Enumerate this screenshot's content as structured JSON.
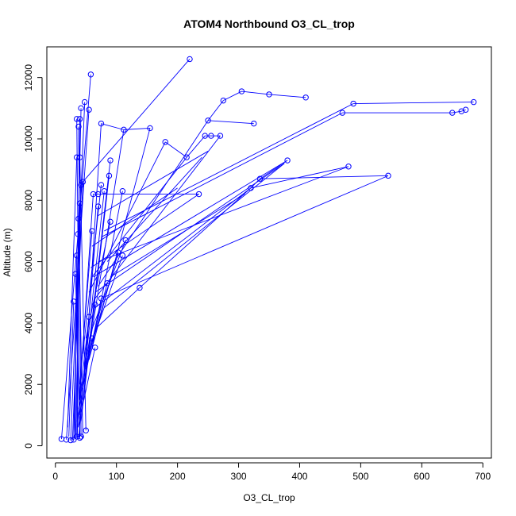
{
  "chart_data": {
    "type": "line",
    "title": "ATOM4 Northbound O3_CL_trop",
    "xlabel": "O3_CL_trop",
    "ylabel": "Altitude (m)",
    "xlim": [
      -14,
      714
    ],
    "ylim": [
      -400,
      13000
    ],
    "x_ticks": [
      0,
      100,
      200,
      300,
      400,
      500,
      600,
      700
    ],
    "y_ticks": [
      0,
      2000,
      4000,
      6000,
      8000,
      10000,
      12000
    ],
    "y_tick_labels": [
      "0",
      "2000",
      "4000",
      "6000",
      "8000",
      "10000",
      "12000"
    ],
    "grid": false,
    "legend": "none",
    "color": "#0000ff",
    "points": [
      [
        10,
        220
      ],
      [
        18,
        200
      ],
      [
        25,
        180
      ],
      [
        30,
        200
      ],
      [
        35,
        300
      ],
      [
        40,
        260
      ],
      [
        42,
        300
      ],
      [
        50,
        500
      ],
      [
        30,
        4700
      ],
      [
        33,
        5600
      ],
      [
        35,
        6200
      ],
      [
        37,
        6900
      ],
      [
        38,
        7400
      ],
      [
        40,
        7900
      ],
      [
        42,
        8500
      ],
      [
        35,
        9400
      ],
      [
        38,
        10400
      ],
      [
        35,
        10650
      ],
      [
        40,
        10650
      ],
      [
        42,
        11000
      ],
      [
        48,
        11200
      ],
      [
        58,
        12100
      ],
      [
        55,
        10950
      ],
      [
        40,
        9400
      ],
      [
        45,
        8600
      ],
      [
        62,
        8200
      ],
      [
        70,
        7800
      ],
      [
        80,
        8300
      ],
      [
        88,
        8800
      ],
      [
        90,
        9300
      ],
      [
        75,
        10500
      ],
      [
        112,
        10300
      ],
      [
        155,
        10350
      ],
      [
        110,
        8300
      ],
      [
        75,
        8500
      ],
      [
        70,
        8200
      ],
      [
        60,
        7000
      ],
      [
        90,
        7300
      ],
      [
        115,
        6700
      ],
      [
        103,
        6300
      ],
      [
        110,
        6200
      ],
      [
        85,
        5300
      ],
      [
        75,
        4800
      ],
      [
        65,
        4600
      ],
      [
        55,
        4200
      ],
      [
        60,
        3500
      ],
      [
        65,
        3200
      ],
      [
        220,
        12600
      ],
      [
        180,
        9900
      ],
      [
        215,
        9400
      ],
      [
        245,
        10100
      ],
      [
        255,
        10100
      ],
      [
        270,
        10100
      ],
      [
        250,
        10600
      ],
      [
        275,
        11250
      ],
      [
        305,
        11550
      ],
      [
        350,
        11450
      ],
      [
        410,
        11350
      ],
      [
        325,
        10500
      ],
      [
        235,
        8200
      ],
      [
        138,
        5150
      ],
      [
        320,
        8400
      ],
      [
        335,
        8700
      ],
      [
        380,
        9300
      ],
      [
        480,
        9100
      ],
      [
        545,
        8800
      ],
      [
        470,
        10850
      ],
      [
        488,
        11150
      ],
      [
        650,
        10850
      ],
      [
        665,
        10900
      ],
      [
        672,
        10950
      ],
      [
        685,
        11200
      ]
    ],
    "segments": [
      [
        [
          10,
          220
        ],
        [
          58,
          12100
        ]
      ],
      [
        [
          18,
          200
        ],
        [
          55,
          10950
        ]
      ],
      [
        [
          25,
          180
        ],
        [
          48,
          11200
        ]
      ],
      [
        [
          30,
          200
        ],
        [
          42,
          11000
        ]
      ],
      [
        [
          35,
          300
        ],
        [
          40,
          10650
        ]
      ],
      [
        [
          40,
          260
        ],
        [
          35,
          10650
        ]
      ],
      [
        [
          42,
          300
        ],
        [
          38,
          10400
        ]
      ],
      [
        [
          50,
          500
        ],
        [
          40,
          9400
        ]
      ],
      [
        [
          20,
          600
        ],
        [
          35,
          9400
        ]
      ],
      [
        [
          28,
          200
        ],
        [
          45,
          8600
        ]
      ],
      [
        [
          35,
          250
        ],
        [
          62,
          8200
        ]
      ],
      [
        [
          38,
          220
        ],
        [
          70,
          7800
        ]
      ],
      [
        [
          22,
          300
        ],
        [
          30,
          4700
        ]
      ],
      [
        [
          40,
          300
        ],
        [
          33,
          5600
        ]
      ],
      [
        [
          32,
          250
        ],
        [
          35,
          6200
        ]
      ],
      [
        [
          36,
          280
        ],
        [
          37,
          6900
        ]
      ],
      [
        [
          45,
          250
        ],
        [
          38,
          7400
        ]
      ],
      [
        [
          30,
          180
        ],
        [
          40,
          7900
        ]
      ],
      [
        [
          33,
          220
        ],
        [
          42,
          8500
        ]
      ],
      [
        [
          40,
          1000
        ],
        [
          80,
          8300
        ]
      ],
      [
        [
          42,
          800
        ],
        [
          88,
          8800
        ]
      ],
      [
        [
          45,
          1500
        ],
        [
          90,
          9300
        ]
      ],
      [
        [
          48,
          2000
        ],
        [
          75,
          10500
        ]
      ],
      [
        [
          50,
          2500
        ],
        [
          112,
          10300
        ]
      ],
      [
        [
          55,
          2800
        ],
        [
          155,
          10350
        ]
      ],
      [
        [
          60,
          3200
        ],
        [
          110,
          8300
        ]
      ],
      [
        [
          45,
          3000
        ],
        [
          75,
          8500
        ]
      ],
      [
        [
          40,
          2000
        ],
        [
          60,
          7000
        ]
      ],
      [
        [
          50,
          3500
        ],
        [
          90,
          7300
        ]
      ],
      [
        [
          60,
          3800
        ],
        [
          115,
          6700
        ]
      ],
      [
        [
          55,
          3000
        ],
        [
          103,
          6300
        ]
      ],
      [
        [
          62,
          3500
        ],
        [
          110,
          6200
        ]
      ],
      [
        [
          48,
          2500
        ],
        [
          85,
          5300
        ]
      ],
      [
        [
          44,
          1800
        ],
        [
          75,
          4800
        ]
      ],
      [
        [
          40,
          1500
        ],
        [
          65,
          4600
        ]
      ],
      [
        [
          38,
          1200
        ],
        [
          55,
          4200
        ]
      ],
      [
        [
          35,
          800
        ],
        [
          60,
          3500
        ]
      ],
      [
        [
          37,
          600
        ],
        [
          65,
          3200
        ]
      ],
      [
        [
          45,
          8600
        ],
        [
          220,
          12600
        ]
      ],
      [
        [
          75,
          10500
        ],
        [
          112,
          10300
        ]
      ],
      [
        [
          112,
          10300
        ],
        [
          155,
          10350
        ]
      ],
      [
        [
          55,
          5000
        ],
        [
          180,
          9900
        ]
      ],
      [
        [
          180,
          9900
        ],
        [
          215,
          9400
        ]
      ],
      [
        [
          215,
          9400
        ],
        [
          245,
          10100
        ]
      ],
      [
        [
          245,
          10100
        ],
        [
          255,
          10100
        ]
      ],
      [
        [
          255,
          10100
        ],
        [
          270,
          10100
        ]
      ],
      [
        [
          60,
          5500
        ],
        [
          215,
          9400
        ]
      ],
      [
        [
          70,
          5200
        ],
        [
          250,
          10600
        ]
      ],
      [
        [
          250,
          10600
        ],
        [
          275,
          11250
        ]
      ],
      [
        [
          275,
          11250
        ],
        [
          305,
          11550
        ]
      ],
      [
        [
          305,
          11550
        ],
        [
          350,
          11450
        ]
      ],
      [
        [
          350,
          11450
        ],
        [
          410,
          11350
        ]
      ],
      [
        [
          250,
          10600
        ],
        [
          325,
          10500
        ]
      ],
      [
        [
          65,
          4800
        ],
        [
          270,
          10100
        ]
      ],
      [
        [
          62,
          8200
        ],
        [
          235,
          8200
        ]
      ],
      [
        [
          58,
          5800
        ],
        [
          235,
          8200
        ]
      ],
      [
        [
          65,
          3800
        ],
        [
          138,
          5150
        ]
      ],
      [
        [
          138,
          5150
        ],
        [
          320,
          8400
        ]
      ],
      [
        [
          320,
          8400
        ],
        [
          335,
          8700
        ]
      ],
      [
        [
          335,
          8700
        ],
        [
          380,
          9300
        ]
      ],
      [
        [
          62,
          5500
        ],
        [
          380,
          9300
        ]
      ],
      [
        [
          65,
          4500
        ],
        [
          320,
          8400
        ]
      ],
      [
        [
          320,
          8400
        ],
        [
          480,
          9100
        ]
      ],
      [
        [
          70,
          6000
        ],
        [
          480,
          9100
        ]
      ],
      [
        [
          335,
          8700
        ],
        [
          545,
          8800
        ]
      ],
      [
        [
          75,
          4800
        ],
        [
          545,
          8800
        ]
      ],
      [
        [
          75,
          6800
        ],
        [
          470,
          10850
        ]
      ],
      [
        [
          470,
          10850
        ],
        [
          650,
          10850
        ]
      ],
      [
        [
          650,
          10850
        ],
        [
          665,
          10900
        ]
      ],
      [
        [
          665,
          10900
        ],
        [
          672,
          10950
        ]
      ],
      [
        [
          80,
          7000
        ],
        [
          488,
          11150
        ]
      ],
      [
        [
          488,
          11150
        ],
        [
          685,
          11200
        ]
      ],
      [
        [
          65,
          5000
        ],
        [
          375,
          9200
        ]
      ],
      [
        [
          80,
          4500
        ],
        [
          375,
          9200
        ]
      ],
      [
        [
          90,
          5500
        ],
        [
          310,
          8200
        ]
      ],
      [
        [
          70,
          7500
        ],
        [
          250,
          9600
        ]
      ],
      [
        [
          60,
          6500
        ],
        [
          200,
          8400
        ]
      ],
      [
        [
          85,
          6000
        ],
        [
          240,
          9400
        ]
      ]
    ]
  }
}
